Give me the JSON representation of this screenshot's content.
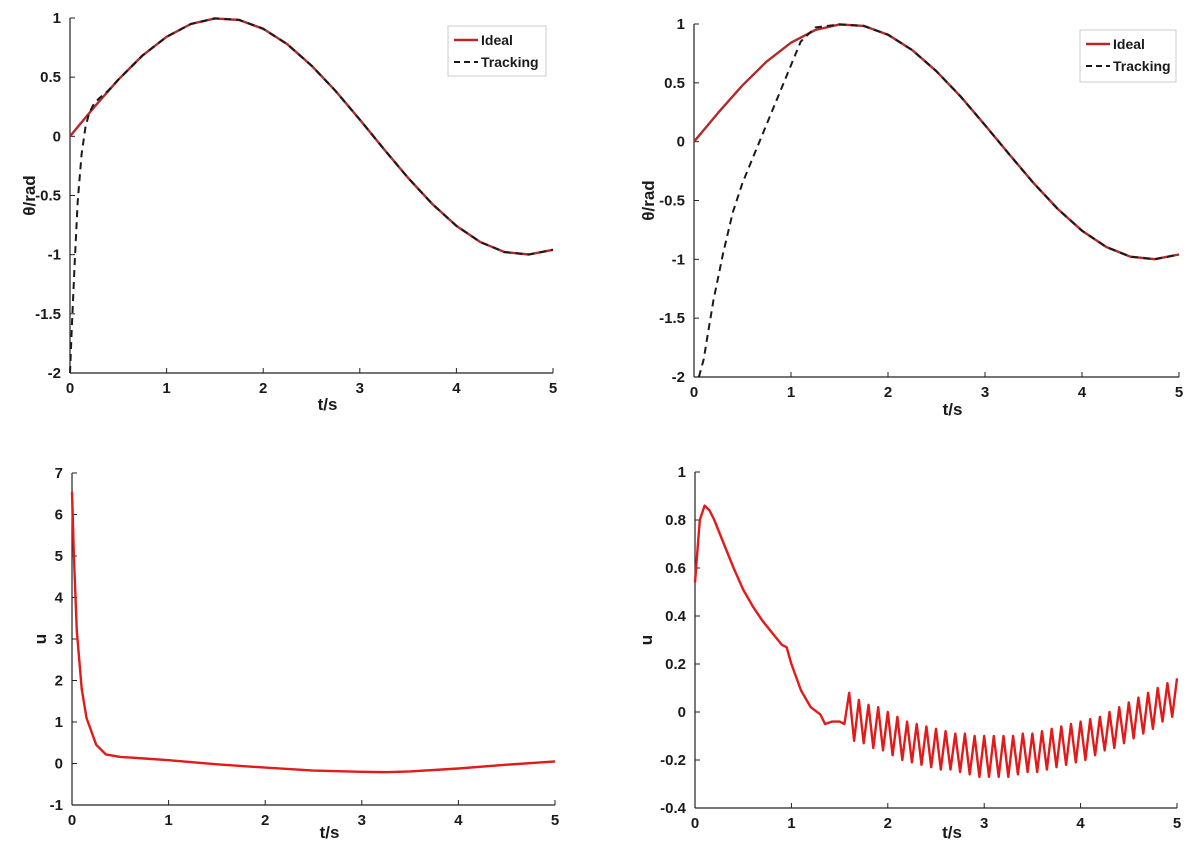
{
  "chart_data": [
    {
      "type": "line",
      "xlabel": "t/s",
      "ylabel": "θ/rad",
      "xlim": [
        0,
        5
      ],
      "ylim": [
        -2,
        1
      ],
      "xticks": [
        "0",
        "1",
        "2",
        "3",
        "4",
        "5"
      ],
      "yticks": [
        "-2",
        "-1.5",
        "-1",
        "-0.5",
        "0",
        "0.5",
        "1"
      ],
      "legend_position": "top-right",
      "series": [
        {
          "name": "Ideal",
          "style": "solid",
          "color": "#b22a2a",
          "x": [
            0,
            0.25,
            0.5,
            0.75,
            1,
            1.25,
            1.5,
            1.75,
            2,
            2.25,
            2.5,
            2.75,
            3,
            3.25,
            3.5,
            3.75,
            4,
            4.25,
            4.5,
            4.75,
            5
          ],
          "y": [
            0,
            0.247,
            0.479,
            0.682,
            0.841,
            0.949,
            0.997,
            0.984,
            0.909,
            0.778,
            0.598,
            0.382,
            0.141,
            -0.108,
            -0.351,
            -0.572,
            -0.757,
            -0.895,
            -0.978,
            -0.999,
            -0.959
          ]
        },
        {
          "name": "Tracking",
          "style": "dashed",
          "color": "#1a1a1a",
          "x": [
            0,
            0.02,
            0.05,
            0.08,
            0.12,
            0.16,
            0.2,
            0.25,
            0.3,
            0.4,
            0.5,
            0.75,
            1,
            1.25,
            1.5,
            1.75,
            2,
            2.25,
            2.5,
            2.75,
            3,
            3.25,
            3.5,
            3.75,
            4,
            4.25,
            4.5,
            4.75,
            5
          ],
          "y": [
            -2,
            -1.6,
            -1.05,
            -0.55,
            -0.15,
            0.08,
            0.2,
            0.28,
            0.32,
            0.39,
            0.479,
            0.682,
            0.841,
            0.949,
            0.997,
            0.984,
            0.909,
            0.778,
            0.598,
            0.382,
            0.141,
            -0.108,
            -0.351,
            -0.572,
            -0.757,
            -0.895,
            -0.978,
            -0.999,
            -0.959
          ]
        }
      ]
    },
    {
      "type": "line",
      "xlabel": "t/s",
      "ylabel": "θ/rad",
      "xlim": [
        0,
        5
      ],
      "ylim": [
        -2,
        1
      ],
      "xticks": [
        "0",
        "1",
        "2",
        "3",
        "4",
        "5"
      ],
      "yticks": [
        "-2",
        "-1.5",
        "-1",
        "-0.5",
        "0",
        "0.5",
        "1"
      ],
      "legend_position": "top-right",
      "series": [
        {
          "name": "Ideal",
          "style": "solid",
          "color": "#b22a2a",
          "x": [
            0,
            0.25,
            0.5,
            0.75,
            1,
            1.25,
            1.5,
            1.75,
            2,
            2.25,
            2.5,
            2.75,
            3,
            3.25,
            3.5,
            3.75,
            4,
            4.25,
            4.5,
            4.75,
            5
          ],
          "y": [
            0,
            0.247,
            0.479,
            0.682,
            0.841,
            0.949,
            0.997,
            0.984,
            0.909,
            0.778,
            0.598,
            0.382,
            0.141,
            -0.108,
            -0.351,
            -0.572,
            -0.757,
            -0.895,
            -0.978,
            -0.999,
            -0.959
          ]
        },
        {
          "name": "Tracking",
          "style": "dashed",
          "color": "#1a1a1a",
          "x": [
            0.05,
            0.1,
            0.15,
            0.2,
            0.3,
            0.4,
            0.5,
            0.6,
            0.7,
            0.8,
            0.9,
            1,
            1.1,
            1.25,
            1.5,
            1.75,
            2,
            2.25,
            2.5,
            2.75,
            3,
            3.25,
            3.5,
            3.75,
            4,
            4.25,
            4.5,
            4.75,
            5
          ],
          "y": [
            -2,
            -1.85,
            -1.6,
            -1.35,
            -0.95,
            -0.6,
            -0.35,
            -0.15,
            0.05,
            0.25,
            0.45,
            0.65,
            0.85,
            0.97,
            0.997,
            0.984,
            0.909,
            0.778,
            0.598,
            0.382,
            0.141,
            -0.108,
            -0.351,
            -0.572,
            -0.757,
            -0.895,
            -0.978,
            -0.999,
            -0.959
          ]
        }
      ]
    },
    {
      "type": "line",
      "xlabel": "t/s",
      "ylabel": "u",
      "xlim": [
        0,
        5
      ],
      "ylim": [
        -1,
        7
      ],
      "xticks": [
        "0",
        "1",
        "2",
        "3",
        "4",
        "5"
      ],
      "yticks": [
        "-1",
        "0",
        "1",
        "2",
        "3",
        "4",
        "5",
        "6",
        "7"
      ],
      "series": [
        {
          "style": "solid",
          "color": "#e31a1a",
          "x": [
            0,
            0.02,
            0.05,
            0.1,
            0.15,
            0.25,
            0.35,
            0.5,
            0.75,
            1,
            1.5,
            2,
            2.5,
            3,
            3.25,
            3.5,
            4,
            4.5,
            5
          ],
          "y": [
            6.55,
            5,
            3.2,
            1.8,
            1.1,
            0.45,
            0.22,
            0.16,
            0.12,
            0.08,
            -0.02,
            -0.1,
            -0.17,
            -0.2,
            -0.21,
            -0.19,
            -0.12,
            -0.03,
            0.05
          ]
        }
      ]
    },
    {
      "type": "line",
      "xlabel": "t/s",
      "ylabel": "u",
      "xlim": [
        0,
        5
      ],
      "ylim": [
        -0.4,
        1
      ],
      "xticks": [
        "0",
        "1",
        "2",
        "3",
        "4",
        "5"
      ],
      "yticks": [
        "-0.4",
        "-0.2",
        "0",
        "0.2",
        "0.4",
        "0.6",
        "0.8",
        "1"
      ],
      "series": [
        {
          "style": "solid",
          "color": "#e31a1a",
          "x": [
            0,
            0.05,
            0.1,
            0.15,
            0.2,
            0.3,
            0.4,
            0.5,
            0.6,
            0.7,
            0.8,
            0.9,
            0.95,
            1,
            1.1,
            1.2,
            1.3,
            1.35,
            1.42,
            1.5,
            1.55,
            1.6,
            1.65,
            1.7,
            1.75,
            1.8,
            1.85,
            1.9,
            1.95,
            2,
            2.05,
            2.1,
            2.15,
            2.2,
            2.25,
            2.3,
            2.35,
            2.4,
            2.45,
            2.5,
            2.55,
            2.6,
            2.65,
            2.7,
            2.75,
            2.8,
            2.85,
            2.9,
            2.95,
            3,
            3.05,
            3.1,
            3.15,
            3.2,
            3.25,
            3.3,
            3.35,
            3.4,
            3.45,
            3.5,
            3.55,
            3.6,
            3.65,
            3.7,
            3.75,
            3.8,
            3.85,
            3.9,
            3.95,
            4,
            4.05,
            4.1,
            4.15,
            4.2,
            4.25,
            4.3,
            4.35,
            4.4,
            4.45,
            4.5,
            4.55,
            4.6,
            4.65,
            4.7,
            4.75,
            4.8,
            4.85,
            4.9,
            4.95,
            5
          ],
          "y": [
            0.54,
            0.8,
            0.86,
            0.84,
            0.8,
            0.7,
            0.6,
            0.51,
            0.44,
            0.38,
            0.33,
            0.28,
            0.27,
            0.2,
            0.09,
            0.02,
            -0.01,
            -0.05,
            -0.04,
            -0.04,
            -0.05,
            0.08,
            -0.12,
            0.05,
            -0.13,
            0.03,
            -0.15,
            0.02,
            -0.16,
            0.0,
            -0.18,
            -0.02,
            -0.2,
            -0.04,
            -0.21,
            -0.05,
            -0.22,
            -0.06,
            -0.23,
            -0.07,
            -0.24,
            -0.08,
            -0.24,
            -0.09,
            -0.25,
            -0.09,
            -0.26,
            -0.1,
            -0.27,
            -0.1,
            -0.27,
            -0.1,
            -0.27,
            -0.1,
            -0.27,
            -0.1,
            -0.26,
            -0.09,
            -0.25,
            -0.09,
            -0.25,
            -0.08,
            -0.24,
            -0.07,
            -0.23,
            -0.06,
            -0.22,
            -0.05,
            -0.21,
            -0.04,
            -0.2,
            -0.03,
            -0.18,
            -0.02,
            -0.16,
            0.0,
            -0.15,
            0.02,
            -0.13,
            0.04,
            -0.11,
            0.06,
            -0.09,
            0.08,
            -0.07,
            0.1,
            -0.04,
            0.12,
            -0.02,
            0.14
          ]
        }
      ]
    }
  ]
}
